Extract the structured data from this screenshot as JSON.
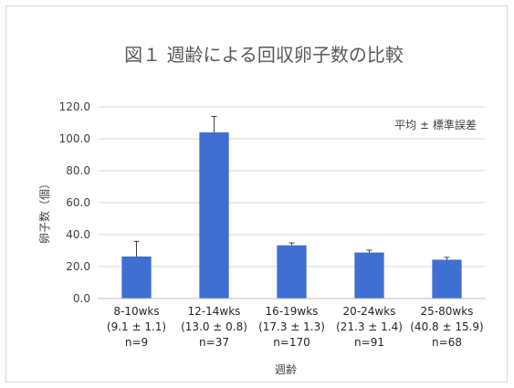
{
  "chart_data": {
    "type": "bar",
    "title": "図１ 週齢による回収卵子数の比較",
    "ylabel": "卵子数（個）",
    "xlabel": "週齢",
    "annotation": "平均 ± 標準誤差",
    "ylim": [
      0,
      120
    ],
    "yticks": [
      "0.0",
      "20.0",
      "40.0",
      "60.0",
      "80.0",
      "100.0",
      "120.0"
    ],
    "grid": true,
    "bar_color": "#3f6fd0",
    "categories": [
      {
        "line1": "8-10wks",
        "line2": "(9.1 ± 1.1)",
        "line3": "n=9"
      },
      {
        "line1": "12-14wks",
        "line2": "(13.0 ± 0.8)",
        "line3": "n=37"
      },
      {
        "line1": "16-19wks",
        "line2": "(17.3 ± 1.3)",
        "line3": "n=170"
      },
      {
        "line1": "20-24wks",
        "line2": "(21.3 ± 1.4)",
        "line3": "n=91"
      },
      {
        "line1": "25-80wks",
        "line2": "(40.8 ± 15.9)",
        "line3": "n=68"
      }
    ],
    "values": [
      26.3,
      104.0,
      33.3,
      28.8,
      24.3
    ],
    "errors": [
      9.5,
      10.0,
      1.5,
      1.5,
      1.5
    ]
  }
}
